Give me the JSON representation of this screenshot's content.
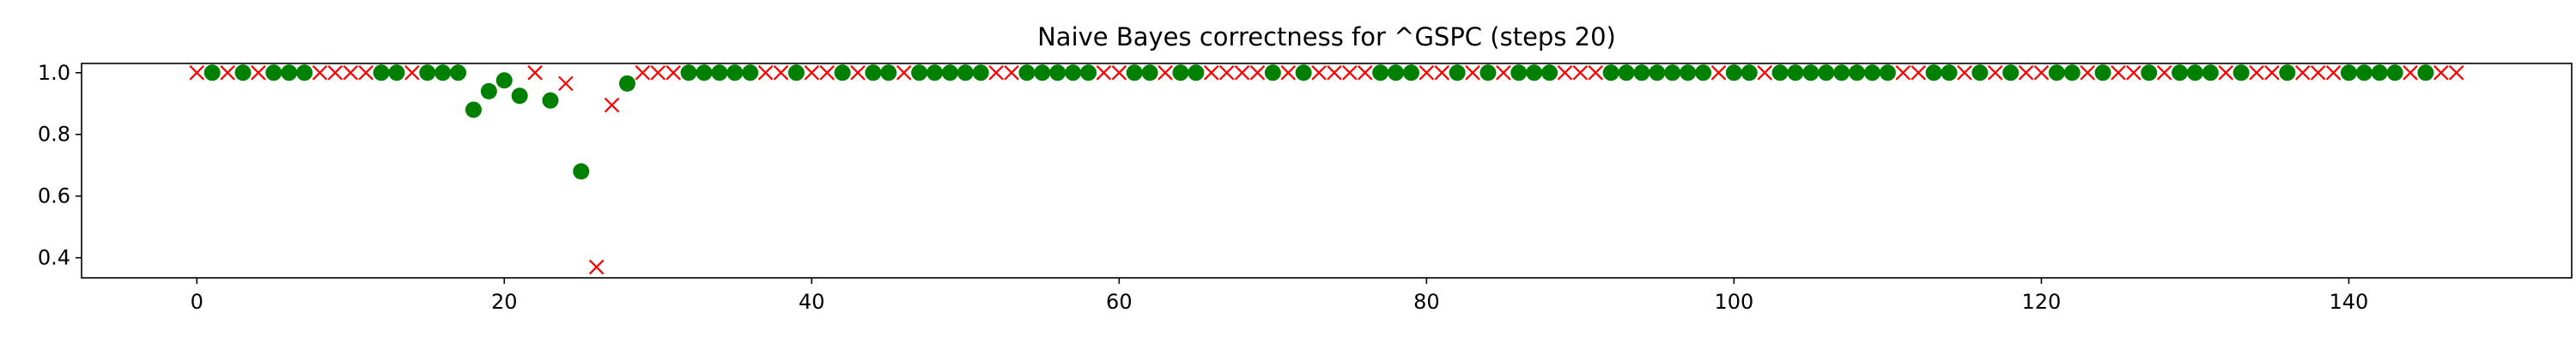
{
  "chart_data": {
    "type": "scatter",
    "title": "Naive Bayes correctness for ^GSPC (steps 20)",
    "xlabel": "",
    "ylabel": "",
    "xlim": [
      -7.5,
      154.5
    ],
    "ylim": [
      0.335,
      1.03
    ],
    "x_ticks": [
      0,
      20,
      40,
      60,
      80,
      100,
      120,
      140
    ],
    "y_ticks": [
      0.4,
      0.6,
      0.8,
      1.0
    ],
    "x_tick_labels": [
      "0",
      "20",
      "40",
      "60",
      "80",
      "100",
      "120",
      "140"
    ],
    "y_tick_labels": [
      "0.4",
      "0.6",
      "0.8",
      "1.0"
    ],
    "grid": false,
    "series": [
      {
        "marker": "circle",
        "color": "#008000",
        "points": [
          [
            1,
            1.0
          ],
          [
            3,
            1.0
          ],
          [
            5,
            1.0
          ],
          [
            6,
            1.0
          ],
          [
            7,
            1.0
          ],
          [
            12,
            1.0
          ],
          [
            13,
            1.0
          ],
          [
            15,
            1.0
          ],
          [
            16,
            1.0
          ],
          [
            17,
            1.0
          ],
          [
            18,
            0.88
          ],
          [
            19,
            0.94
          ],
          [
            20,
            0.975
          ],
          [
            21,
            0.925
          ],
          [
            23,
            0.91
          ],
          [
            25,
            0.68
          ],
          [
            28,
            0.965
          ],
          [
            32,
            1.0
          ],
          [
            33,
            1.0
          ],
          [
            34,
            1.0
          ],
          [
            35,
            1.0
          ],
          [
            36,
            1.0
          ],
          [
            39,
            1.0
          ],
          [
            42,
            1.0
          ],
          [
            44,
            1.0
          ],
          [
            45,
            1.0
          ],
          [
            47,
            1.0
          ],
          [
            48,
            1.0
          ],
          [
            49,
            1.0
          ],
          [
            50,
            1.0
          ],
          [
            51,
            1.0
          ],
          [
            54,
            1.0
          ],
          [
            55,
            1.0
          ],
          [
            56,
            1.0
          ],
          [
            57,
            1.0
          ],
          [
            58,
            1.0
          ],
          [
            61,
            1.0
          ],
          [
            62,
            1.0
          ],
          [
            64,
            1.0
          ],
          [
            65,
            1.0
          ],
          [
            70,
            1.0
          ],
          [
            72,
            1.0
          ],
          [
            77,
            1.0
          ],
          [
            78,
            1.0
          ],
          [
            79,
            1.0
          ],
          [
            82,
            1.0
          ],
          [
            84,
            1.0
          ],
          [
            86,
            1.0
          ],
          [
            87,
            1.0
          ],
          [
            88,
            1.0
          ],
          [
            92,
            1.0
          ],
          [
            93,
            1.0
          ],
          [
            94,
            1.0
          ],
          [
            95,
            1.0
          ],
          [
            96,
            1.0
          ],
          [
            97,
            1.0
          ],
          [
            98,
            1.0
          ],
          [
            100,
            1.0
          ],
          [
            101,
            1.0
          ],
          [
            103,
            1.0
          ],
          [
            104,
            1.0
          ],
          [
            105,
            1.0
          ],
          [
            106,
            1.0
          ],
          [
            107,
            1.0
          ],
          [
            108,
            1.0
          ],
          [
            109,
            1.0
          ],
          [
            110,
            1.0
          ],
          [
            113,
            1.0
          ],
          [
            114,
            1.0
          ],
          [
            116,
            1.0
          ],
          [
            118,
            1.0
          ],
          [
            121,
            1.0
          ],
          [
            122,
            1.0
          ],
          [
            124,
            1.0
          ],
          [
            127,
            1.0
          ],
          [
            129,
            1.0
          ],
          [
            130,
            1.0
          ],
          [
            131,
            1.0
          ],
          [
            133,
            1.0
          ],
          [
            136,
            1.0
          ],
          [
            140,
            1.0
          ],
          [
            141,
            1.0
          ],
          [
            142,
            1.0
          ],
          [
            143,
            1.0
          ],
          [
            145,
            1.0
          ]
        ]
      },
      {
        "marker": "x",
        "color": "#ff0000",
        "points": [
          [
            0,
            1.0
          ],
          [
            2,
            1.0
          ],
          [
            4,
            1.0
          ],
          [
            8,
            1.0
          ],
          [
            9,
            1.0
          ],
          [
            10,
            1.0
          ],
          [
            11,
            1.0
          ],
          [
            14,
            1.0
          ],
          [
            22,
            1.0
          ],
          [
            24,
            0.965
          ],
          [
            26,
            0.37
          ],
          [
            27,
            0.895
          ],
          [
            29,
            1.0
          ],
          [
            30,
            1.0
          ],
          [
            31,
            1.0
          ],
          [
            37,
            1.0
          ],
          [
            38,
            1.0
          ],
          [
            40,
            1.0
          ],
          [
            41,
            1.0
          ],
          [
            43,
            1.0
          ],
          [
            46,
            1.0
          ],
          [
            52,
            1.0
          ],
          [
            53,
            1.0
          ],
          [
            59,
            1.0
          ],
          [
            60,
            1.0
          ],
          [
            63,
            1.0
          ],
          [
            66,
            1.0
          ],
          [
            67,
            1.0
          ],
          [
            68,
            1.0
          ],
          [
            69,
            1.0
          ],
          [
            71,
            1.0
          ],
          [
            73,
            1.0
          ],
          [
            74,
            1.0
          ],
          [
            75,
            1.0
          ],
          [
            76,
            1.0
          ],
          [
            80,
            1.0
          ],
          [
            81,
            1.0
          ],
          [
            83,
            1.0
          ],
          [
            85,
            1.0
          ],
          [
            89,
            1.0
          ],
          [
            90,
            1.0
          ],
          [
            91,
            1.0
          ],
          [
            99,
            1.0
          ],
          [
            102,
            1.0
          ],
          [
            111,
            1.0
          ],
          [
            112,
            1.0
          ],
          [
            115,
            1.0
          ],
          [
            117,
            1.0
          ],
          [
            119,
            1.0
          ],
          [
            120,
            1.0
          ],
          [
            123,
            1.0
          ],
          [
            125,
            1.0
          ],
          [
            126,
            1.0
          ],
          [
            128,
            1.0
          ],
          [
            132,
            1.0
          ],
          [
            134,
            1.0
          ],
          [
            135,
            1.0
          ],
          [
            137,
            1.0
          ],
          [
            138,
            1.0
          ],
          [
            139,
            1.0
          ],
          [
            144,
            1.0
          ],
          [
            146,
            1.0
          ],
          [
            147,
            1.0
          ]
        ]
      }
    ]
  }
}
